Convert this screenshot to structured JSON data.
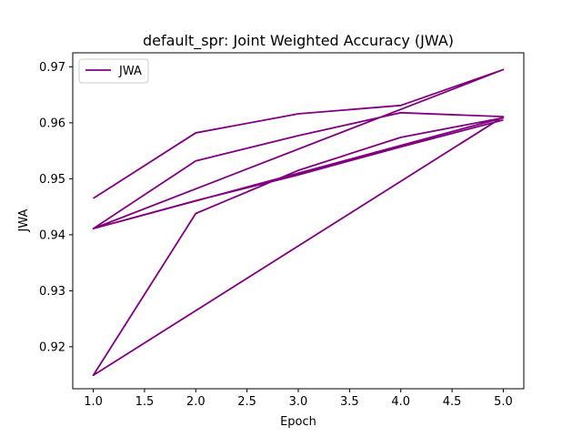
{
  "chart_data": {
    "type": "line",
    "title": "default_spr: Joint Weighted Accuracy (JWA)",
    "xlabel": "Epoch",
    "ylabel": "JWA",
    "xlim": [
      0.8,
      5.2
    ],
    "ylim": [
      0.9125,
      0.9725
    ],
    "x_ticks": [
      "1.0",
      "1.5",
      "2.0",
      "2.5",
      "3.0",
      "3.5",
      "4.0",
      "4.5",
      "5.0"
    ],
    "y_ticks": [
      "0.92",
      "0.93",
      "0.94",
      "0.95",
      "0.96",
      "0.97"
    ],
    "legend": {
      "placement": "top-left",
      "entries": [
        "JWA"
      ]
    },
    "grid": false,
    "series_color": "#800080",
    "series": [
      {
        "name": "JWA",
        "x": [
          1,
          2,
          3,
          4,
          5,
          1,
          2,
          3,
          4,
          5,
          1,
          2,
          3,
          4,
          5,
          1,
          2,
          3,
          4,
          5
        ],
        "y": [
          0.9465,
          0.9582,
          0.9616,
          0.9631,
          0.9695,
          0.9411,
          0.9532,
          0.9577,
          0.9618,
          0.9611,
          0.9149,
          0.9438,
          0.9515,
          0.9574,
          0.9609,
          0.9411,
          0.9461,
          0.9507,
          0.9557,
          0.9605
        ]
      }
    ]
  }
}
